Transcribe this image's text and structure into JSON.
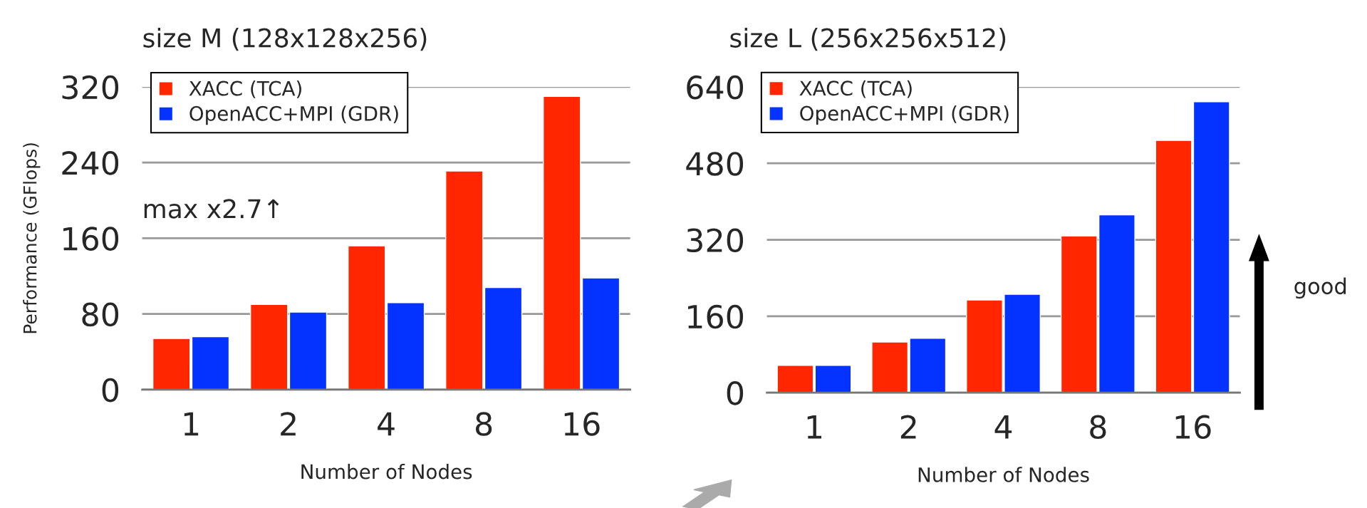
{
  "chart_data": [
    {
      "type": "bar",
      "title": "size M (128x128x256)",
      "xlabel": "Number of Nodes",
      "ylabel": "Performance (GFlops)",
      "categories": [
        "1",
        "2",
        "4",
        "8",
        "16"
      ],
      "series": [
        {
          "name": "XACC (TCA)",
          "color": "#ff2600",
          "values": [
            54,
            90,
            152,
            231,
            310
          ]
        },
        {
          "name": "OpenACC+MPI (GDR)",
          "color": "#0433ff",
          "values": [
            56,
            82,
            92,
            108,
            118
          ]
        }
      ],
      "ylim": [
        0,
        320
      ],
      "yticks": [
        0,
        80,
        160,
        240,
        320
      ],
      "grid": "y",
      "legend": "top left",
      "annotations": [
        "max x2.7↑"
      ]
    },
    {
      "type": "bar",
      "title": "size L (256x256x512)",
      "xlabel": "Number of Nodes",
      "categories": [
        "1",
        "2",
        "4",
        "8",
        "16"
      ],
      "series": [
        {
          "name": "XACC (TCA)",
          "color": "#ff2600",
          "values": [
            57,
            106,
            194,
            328,
            528
          ]
        },
        {
          "name": "OpenACC+MPI (GDR)",
          "color": "#0433ff",
          "values": [
            57,
            114,
            206,
            372,
            609
          ]
        }
      ],
      "ylim": [
        0,
        640
      ],
      "yticks": [
        0,
        160,
        320,
        480,
        640
      ],
      "grid": "y",
      "legend": "top left",
      "annotations": [
        "good"
      ]
    }
  ]
}
